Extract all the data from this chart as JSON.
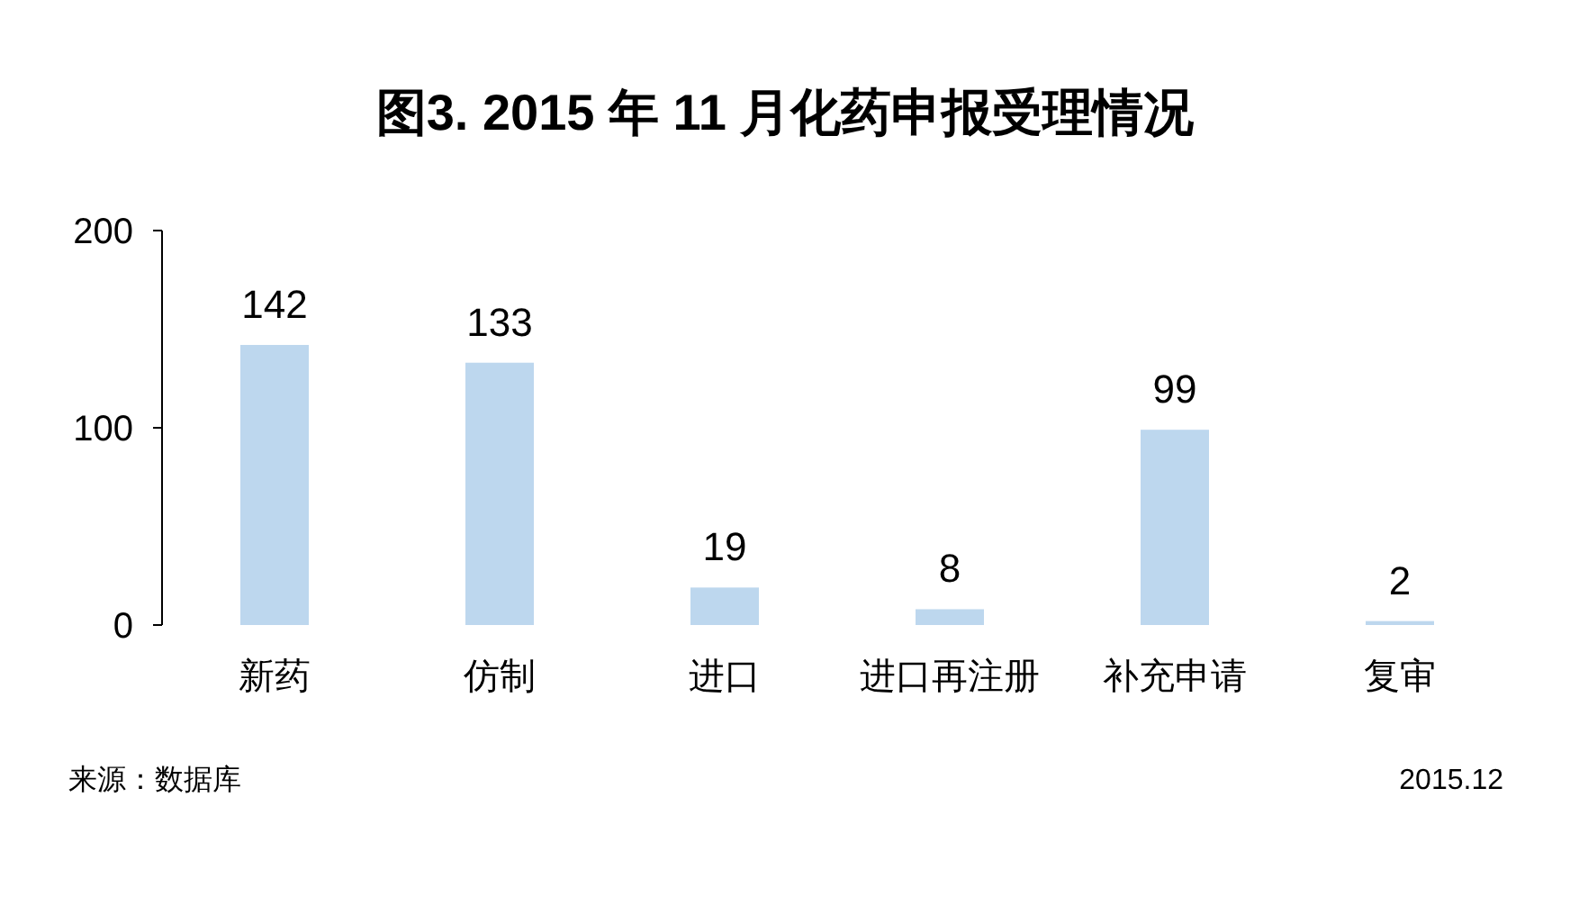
{
  "chart_data": {
    "type": "bar",
    "title": "图3.  2015 年 11 月化药申报受理情况",
    "categories": [
      "新药",
      "仿制",
      "进口",
      "进口再注册",
      "补充申请",
      "复审"
    ],
    "values": [
      142,
      133,
      19,
      8,
      99,
      2
    ],
    "color": "#bdd7ee",
    "ylim": [
      0,
      200
    ],
    "yticks": [
      0,
      100,
      200
    ],
    "grid": false,
    "data_labels": true,
    "annotations": [
      "来源：数据库",
      "2015.12"
    ]
  }
}
